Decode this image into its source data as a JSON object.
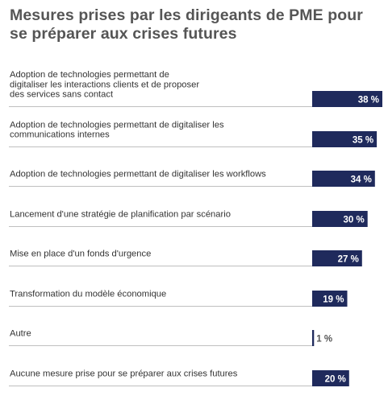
{
  "chart_data": {
    "type": "bar",
    "orientation": "horizontal",
    "title": "Mesures prises par les dirigeants de PME pour se préparer aux crises futures",
    "categories": [
      "Adoption de technologies permettant de digitaliser les interactions clients et de proposer des services sans contact",
      "Adoption de technologies permettant de digitaliser les communications internes",
      "Adoption de technologies permettant de digitaliser les workflows",
      "Lancement d'une stratégie de planification par scénario",
      "Mise en place d'un fonds d'urgence",
      "Transformation du modèle économique",
      "Autre",
      "Aucune mesure prise pour se préparer aux crises futures"
    ],
    "category_lines": [
      [
        "Adoption de technologies permettant de",
        "digitaliser les interactions clients et de proposer",
        "des services sans contact"
      ],
      [
        "Adoption de technologies permettant de digitaliser les",
        "communications internes"
      ],
      [
        "Adoption de technologies permettant de digitaliser les workflows"
      ],
      [
        "Lancement d'une stratégie de planification par scénario"
      ],
      [
        "Mise en place d'un fonds d'urgence"
      ],
      [
        "Transformation du modèle économique"
      ],
      [
        "Autre"
      ],
      [
        "Aucune mesure prise pour se préparer aux crises futures"
      ]
    ],
    "values": [
      38,
      35,
      34,
      30,
      27,
      19,
      1,
      20
    ],
    "value_labels": [
      "38 %",
      "35 %",
      "34 %",
      "30 %",
      "27 %",
      "19 %",
      "1 %",
      "20 %"
    ],
    "unit": "%",
    "xlim": [
      0,
      38
    ],
    "grid": false,
    "legend": "none"
  },
  "colors": {
    "bar": "#1f2a5c",
    "label_inside": "#ffffff",
    "label_outside": "#555555",
    "title": "#555555",
    "separator": "#aaaaaa"
  }
}
